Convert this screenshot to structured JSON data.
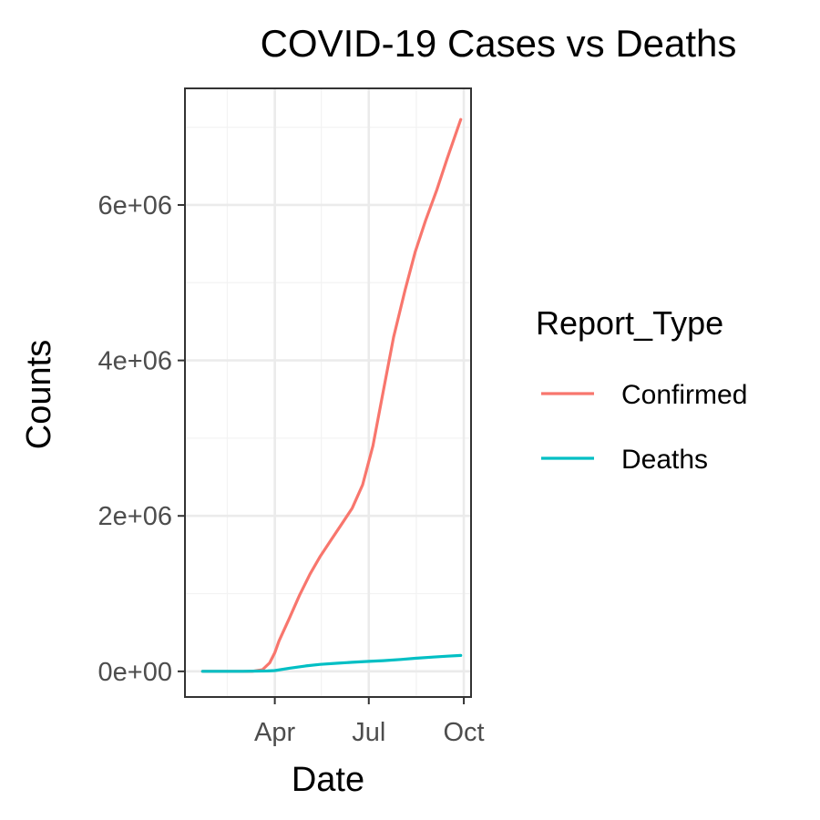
{
  "chart_data": {
    "type": "line",
    "title": "COVID-19 Cases vs Deaths",
    "xlabel": "Date",
    "ylabel": "Counts",
    "x_type": "date",
    "xlim": [
      "2020-01-05",
      "2020-10-08"
    ],
    "ylim": [
      -330000,
      7500000
    ],
    "x_ticks": [
      {
        "date": "2020-04-01",
        "label": "Apr"
      },
      {
        "date": "2020-07-01",
        "label": "Jul"
      },
      {
        "date": "2020-10-01",
        "label": "Oct"
      }
    ],
    "x_minor_ticks": [
      "2020-02-15",
      "2020-05-16",
      "2020-08-16"
    ],
    "y_ticks": [
      {
        "value": 0,
        "label": "0e+00"
      },
      {
        "value": 2000000,
        "label": "2e+06"
      },
      {
        "value": 4000000,
        "label": "4e+06"
      },
      {
        "value": 6000000,
        "label": "6e+06"
      }
    ],
    "y_minor_ticks": [
      1000000,
      3000000,
      5000000,
      7000000
    ],
    "grid": true,
    "legend": {
      "title": "Report_Type",
      "position": "right"
    },
    "series": [
      {
        "name": "Confirmed",
        "color": "#F8766D",
        "points": [
          [
            "2020-01-22",
            0
          ],
          [
            "2020-02-15",
            0
          ],
          [
            "2020-03-10",
            0
          ],
          [
            "2020-03-20",
            20000
          ],
          [
            "2020-03-27",
            110000
          ],
          [
            "2020-04-01",
            240000
          ],
          [
            "2020-04-05",
            390000
          ],
          [
            "2020-04-15",
            680000
          ],
          [
            "2020-04-25",
            980000
          ],
          [
            "2020-05-05",
            1250000
          ],
          [
            "2020-05-15",
            1480000
          ],
          [
            "2020-05-25",
            1680000
          ],
          [
            "2020-06-05",
            1900000
          ],
          [
            "2020-06-15",
            2100000
          ],
          [
            "2020-06-25",
            2400000
          ],
          [
            "2020-07-05",
            2900000
          ],
          [
            "2020-07-15",
            3600000
          ],
          [
            "2020-07-25",
            4300000
          ],
          [
            "2020-08-05",
            4900000
          ],
          [
            "2020-08-15",
            5400000
          ],
          [
            "2020-08-25",
            5800000
          ],
          [
            "2020-09-05",
            6200000
          ],
          [
            "2020-09-15",
            6600000
          ],
          [
            "2020-09-28",
            7100000
          ]
        ]
      },
      {
        "name": "Deaths",
        "color": "#00BFC4",
        "points": [
          [
            "2020-01-22",
            0
          ],
          [
            "2020-03-01",
            0
          ],
          [
            "2020-03-25",
            5000
          ],
          [
            "2020-04-01",
            10000
          ],
          [
            "2020-04-15",
            40000
          ],
          [
            "2020-05-01",
            70000
          ],
          [
            "2020-05-15",
            90000
          ],
          [
            "2020-06-01",
            105000
          ],
          [
            "2020-06-15",
            117000
          ],
          [
            "2020-07-01",
            128000
          ],
          [
            "2020-07-15",
            138000
          ],
          [
            "2020-08-01",
            153000
          ],
          [
            "2020-08-15",
            168000
          ],
          [
            "2020-09-01",
            183000
          ],
          [
            "2020-09-15",
            195000
          ],
          [
            "2020-09-28",
            205000
          ]
        ]
      }
    ]
  }
}
